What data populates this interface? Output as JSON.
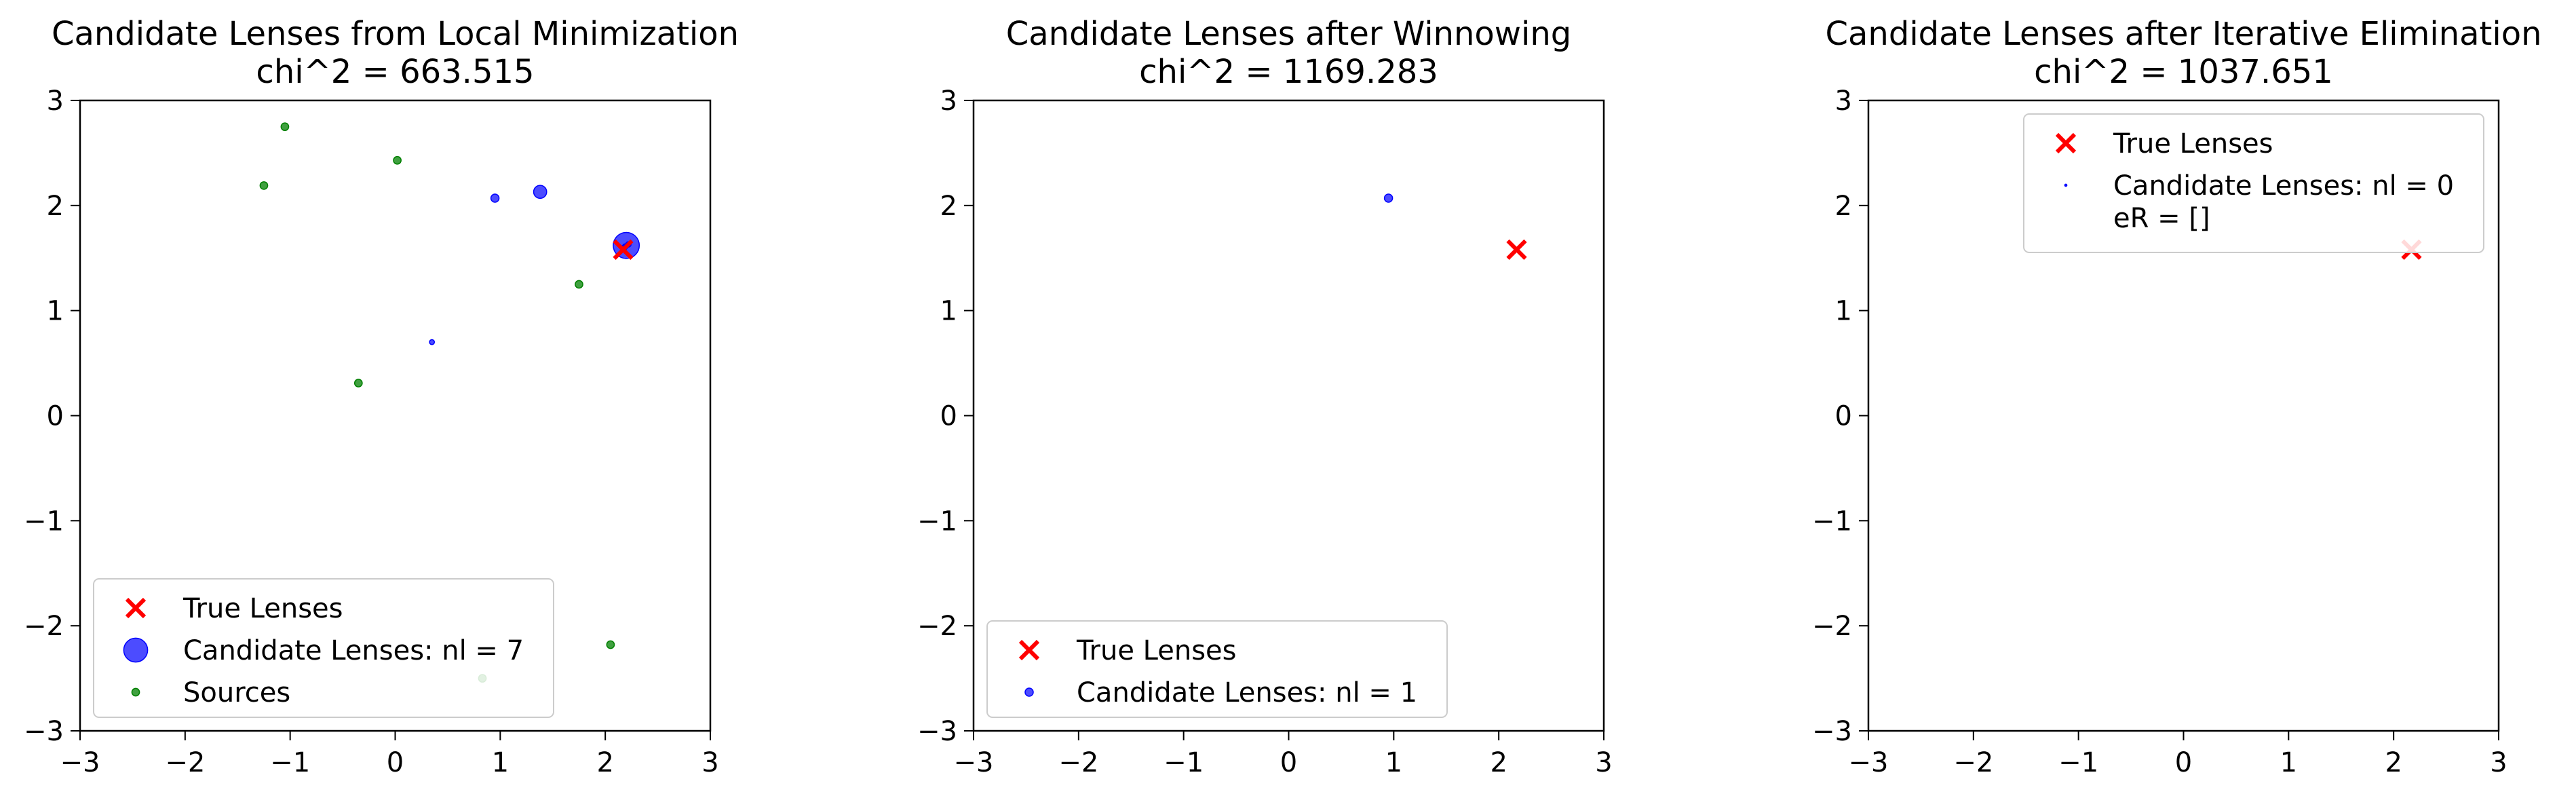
{
  "chart_data": [
    {
      "type": "scatter",
      "title": "Candidate Lenses from Local Minimization",
      "subtitle": "chi^2 = 663.515",
      "xlim": [
        -3,
        3
      ],
      "ylim": [
        -3,
        3
      ],
      "x_ticks": [
        -3,
        -2,
        -1,
        0,
        1,
        2,
        3
      ],
      "y_ticks": [
        -3,
        -2,
        -1,
        0,
        1,
        2,
        3
      ],
      "x_tick_labels": [
        "−3",
        "−2",
        "−1",
        "0",
        "1",
        "2",
        "3"
      ],
      "y_tick_labels": [
        "−3",
        "−2",
        "−1",
        "0",
        "1",
        "2",
        "3"
      ],
      "grid": false,
      "legend_position": "lower-left",
      "series": [
        {
          "name": "True Lenses",
          "marker": "x",
          "color": "#ff0000",
          "points": [
            {
              "x": 2.17,
              "y": 1.58
            }
          ]
        },
        {
          "name": "Candidate Lenses: nl = 7",
          "marker": "circle",
          "color": "#0000ff",
          "opacity": 0.7,
          "legend_size": 2.2,
          "points": [
            {
              "x": 2.2,
              "y": 1.62,
              "size": 2.4
            },
            {
              "x": 1.38,
              "y": 2.13,
              "size": 1.2
            },
            {
              "x": 0.95,
              "y": 2.07,
              "size": 0.75
            },
            {
              "x": 0.35,
              "y": 0.7,
              "size": 0.45
            },
            {
              "x": 2.18,
              "y": 1.6,
              "size": 0.5
            },
            {
              "x": 2.22,
              "y": 1.63,
              "size": 0.5
            },
            {
              "x": 2.19,
              "y": 1.61,
              "size": 0.5
            }
          ]
        },
        {
          "name": "Sources",
          "marker": "circle",
          "color": "#008000",
          "opacity": 0.75,
          "legend_size": 0.7,
          "points": [
            {
              "x": -1.05,
              "y": 2.75,
              "size": 0.7
            },
            {
              "x": -1.25,
              "y": 2.19,
              "size": 0.7
            },
            {
              "x": 0.02,
              "y": 2.43,
              "size": 0.7
            },
            {
              "x": 1.75,
              "y": 1.25,
              "size": 0.7
            },
            {
              "x": -0.35,
              "y": 0.31,
              "size": 0.7
            },
            {
              "x": 2.05,
              "y": -2.18,
              "size": 0.7
            },
            {
              "x": 0.83,
              "y": -2.5,
              "size": 0.7
            }
          ]
        }
      ]
    },
    {
      "type": "scatter",
      "title": "Candidate Lenses after Winnowing",
      "subtitle": "chi^2 = 1169.283",
      "xlim": [
        -3,
        3
      ],
      "ylim": [
        -3,
        3
      ],
      "x_ticks": [
        -3,
        -2,
        -1,
        0,
        1,
        2,
        3
      ],
      "y_ticks": [
        -3,
        -2,
        -1,
        0,
        1,
        2,
        3
      ],
      "x_tick_labels": [
        "−3",
        "−2",
        "−1",
        "0",
        "1",
        "2",
        "3"
      ],
      "y_tick_labels": [
        "−3",
        "−2",
        "−1",
        "0",
        "1",
        "2",
        "3"
      ],
      "grid": false,
      "legend_position": "lower-left",
      "series": [
        {
          "name": "True Lenses",
          "marker": "x",
          "color": "#ff0000",
          "points": [
            {
              "x": 2.17,
              "y": 1.58
            }
          ]
        },
        {
          "name": "Candidate Lenses: nl = 1",
          "marker": "circle",
          "color": "#0000ff",
          "opacity": 0.7,
          "legend_size": 0.75,
          "points": [
            {
              "x": 0.95,
              "y": 2.07,
              "size": 0.75
            }
          ]
        }
      ]
    },
    {
      "type": "scatter",
      "title": "Candidate Lenses after Iterative Elimination",
      "subtitle": "chi^2 = 1037.651",
      "xlim": [
        -3,
        3
      ],
      "ylim": [
        -3,
        3
      ],
      "x_ticks": [
        -3,
        -2,
        -1,
        0,
        1,
        2,
        3
      ],
      "y_ticks": [
        -3,
        -2,
        -1,
        0,
        1,
        2,
        3
      ],
      "x_tick_labels": [
        "−3",
        "−2",
        "−1",
        "0",
        "1",
        "2",
        "3"
      ],
      "y_tick_labels": [
        "−3",
        "−2",
        "−1",
        "0",
        "1",
        "2",
        "3"
      ],
      "grid": false,
      "legend_position": "upper-right",
      "series": [
        {
          "name": "True Lenses",
          "marker": "x",
          "color": "#ff0000",
          "points": [
            {
              "x": 2.17,
              "y": 1.58
            }
          ]
        },
        {
          "name": "Candidate Lenses: nl = 0",
          "name_line2": " eR = []",
          "marker": "circle",
          "color": "#0000ff",
          "opacity": 0.9,
          "legend_size": 0.2,
          "points": []
        }
      ]
    }
  ]
}
